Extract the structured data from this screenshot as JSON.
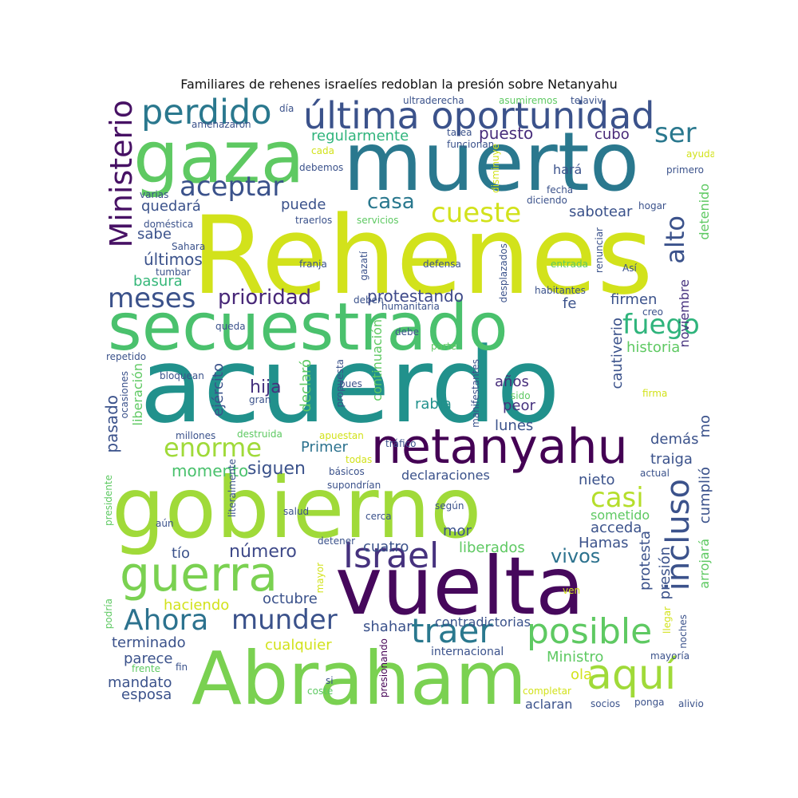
{
  "title": "Familiares de rehenes israelíes redoblan la presión sobre Netanyahu",
  "words": [
    {
      "text": "Rehenes",
      "color": "#d2e21b"
    },
    {
      "text": "acuerdo",
      "color": "#21918c"
    },
    {
      "text": "gobierno",
      "color": "#a0da39"
    },
    {
      "text": "muerto",
      "color": "#2a788e"
    },
    {
      "text": "secuestrado",
      "color": "#4ac16d"
    },
    {
      "text": "vuelta",
      "color": "#46085c"
    },
    {
      "text": "Abraham",
      "color": "#7ad151"
    },
    {
      "text": "gaza",
      "color": "#5ec962"
    },
    {
      "text": "netanyahu",
      "color": "#440154"
    },
    {
      "text": "última oportunidad",
      "color": "#3b528b"
    },
    {
      "text": "guerra",
      "color": "#7ad151"
    },
    {
      "text": "perdido",
      "color": "#2a788e"
    },
    {
      "text": "Ministerio",
      "color": "#471164"
    },
    {
      "text": "aquí",
      "color": "#a0da39"
    },
    {
      "text": "posible",
      "color": "#5ec962"
    },
    {
      "text": "Israel",
      "color": "#46327e"
    },
    {
      "text": "incluso",
      "color": "#3b528b"
    },
    {
      "text": "traer",
      "color": "#2a788e"
    },
    {
      "text": "Ahora",
      "color": "#2c728e"
    },
    {
      "text": "munder",
      "color": "#3b528b"
    },
    {
      "text": "aceptar",
      "color": "#3b528b"
    },
    {
      "text": "meses",
      "color": "#3b528b"
    },
    {
      "text": "cueste",
      "color": "#d2e21b"
    },
    {
      "text": "enorme",
      "color": "#a0da39"
    },
    {
      "text": "fuego",
      "color": "#2fb47c"
    },
    {
      "text": "alto",
      "color": "#3b528b"
    },
    {
      "text": "ser",
      "color": "#2a788e"
    },
    {
      "text": "casi",
      "color": "#b5de2b"
    },
    {
      "text": "prioridad",
      "color": "#482878"
    },
    {
      "text": "casa",
      "color": "#2a788e"
    },
    {
      "text": "número",
      "color": "#3e4989"
    },
    {
      "text": "vivos",
      "color": "#2c728e"
    },
    {
      "text": "regularmente",
      "color": "#2fb47c"
    },
    {
      "text": "puesto",
      "color": "#472d7b"
    },
    {
      "text": "cubo",
      "color": "#482878"
    },
    {
      "text": "protestando",
      "color": "#3e4989"
    },
    {
      "text": "sabotear",
      "color": "#3b528b"
    },
    {
      "text": "Primer",
      "color": "#2c728e"
    },
    {
      "text": "siguen",
      "color": "#3b528b"
    },
    {
      "text": "momento",
      "color": "#4ac16d"
    },
    {
      "text": "pasado",
      "color": "#3b528b"
    },
    {
      "text": "basura",
      "color": "#35b779"
    },
    {
      "text": "últimos",
      "color": "#3b528b"
    },
    {
      "text": "quedará",
      "color": "#3b528b"
    },
    {
      "text": "puede",
      "color": "#3b528b"
    },
    {
      "text": "sabe",
      "color": "#3b528b"
    },
    {
      "text": "hará",
      "color": "#3b528b"
    },
    {
      "text": "historia",
      "color": "#5ec962"
    },
    {
      "text": "cautiverio",
      "color": "#3b528b"
    },
    {
      "text": "fe",
      "color": "#3b528b"
    },
    {
      "text": "firmen",
      "color": "#3b528b"
    },
    {
      "text": "noviembre",
      "color": "#46327e"
    },
    {
      "text": "detenido",
      "color": "#5ec962"
    },
    {
      "text": "hija",
      "color": "#46327e"
    },
    {
      "text": "declaró",
      "color": "#5ec962"
    },
    {
      "text": "rabia",
      "color": "#21918c"
    },
    {
      "text": "años",
      "color": "#472d7b"
    },
    {
      "text": "peor",
      "color": "#46327e"
    },
    {
      "text": "lunes",
      "color": "#3b528b"
    },
    {
      "text": "demás",
      "color": "#3b528b"
    },
    {
      "text": "traiga",
      "color": "#3b528b"
    },
    {
      "text": "nieto",
      "color": "#3b528b"
    },
    {
      "text": "mo",
      "color": "#3b528b"
    },
    {
      "text": "ejército",
      "color": "#3b528b"
    },
    {
      "text": "liberación",
      "color": "#5ec962"
    },
    {
      "text": "continuación",
      "color": "#5ec962"
    },
    {
      "text": "cumplió",
      "color": "#3b528b"
    },
    {
      "text": "sometido",
      "color": "#5ec962"
    },
    {
      "text": "acceda",
      "color": "#3b528b"
    },
    {
      "text": "mor",
      "color": "#3b528b"
    },
    {
      "text": "declaraciones",
      "color": "#3b528b"
    },
    {
      "text": "liberados",
      "color": "#5ec962"
    },
    {
      "text": "cuatro",
      "color": "#3b528b"
    },
    {
      "text": "Hamas",
      "color": "#3b528b"
    },
    {
      "text": "tío",
      "color": "#3b528b"
    },
    {
      "text": "octubre",
      "color": "#3b528b"
    },
    {
      "text": "haciendo",
      "color": "#d2e21b"
    },
    {
      "text": "protesta",
      "color": "#3b528b"
    },
    {
      "text": "presión",
      "color": "#3b528b"
    },
    {
      "text": "arrojará",
      "color": "#5ec962"
    },
    {
      "text": "shahar",
      "color": "#3b528b"
    },
    {
      "text": "contradictorias",
      "color": "#3b528b"
    },
    {
      "text": "cualquier",
      "color": "#d2e21b"
    },
    {
      "text": "terminado",
      "color": "#3b528b"
    },
    {
      "text": "parece",
      "color": "#3b528b"
    },
    {
      "text": "mandato",
      "color": "#3b528b"
    },
    {
      "text": "esposa",
      "color": "#3b528b"
    },
    {
      "text": "Ministro",
      "color": "#5ec962"
    },
    {
      "text": "ola",
      "color": "#d2e21b"
    },
    {
      "text": "aclaran",
      "color": "#3b528b"
    },
    {
      "text": "internacional",
      "color": "#3b528b"
    },
    {
      "text": "ultraderecha",
      "color": "#3b528b"
    },
    {
      "text": "asumiremos",
      "color": "#5ec962"
    },
    {
      "text": "telaviv",
      "color": "#3b528b"
    },
    {
      "text": "día",
      "color": "#3b528b"
    },
    {
      "text": "amenazaron",
      "color": "#3b528b"
    },
    {
      "text": "tarea",
      "color": "#3b528b"
    },
    {
      "text": "funcionan",
      "color": "#3b528b"
    },
    {
      "text": "cada",
      "color": "#d2e21b"
    },
    {
      "text": "debemos",
      "color": "#3b528b"
    },
    {
      "text": "ayuda",
      "color": "#d2e21b"
    },
    {
      "text": "primero",
      "color": "#3b528b"
    },
    {
      "text": "disminuye",
      "color": "#d2e21b"
    },
    {
      "text": "varias",
      "color": "#3b528b"
    },
    {
      "text": "fecha",
      "color": "#3b528b"
    },
    {
      "text": "diciendo",
      "color": "#3b528b"
    },
    {
      "text": "doméstica",
      "color": "#3b528b"
    },
    {
      "text": "traerlos",
      "color": "#3b528b"
    },
    {
      "text": "servicios",
      "color": "#5ec962"
    },
    {
      "text": "hogar",
      "color": "#3b528b"
    },
    {
      "text": "Sahara",
      "color": "#3b528b"
    },
    {
      "text": "tumbar",
      "color": "#3b528b"
    },
    {
      "text": "franja",
      "color": "#3b528b"
    },
    {
      "text": "gazatí",
      "color": "#3b528b"
    },
    {
      "text": "defensa",
      "color": "#3b528b"
    },
    {
      "text": "desplazados",
      "color": "#3b528b"
    },
    {
      "text": "entrada",
      "color": "#5ec962"
    },
    {
      "text": "renunciar",
      "color": "#3b528b"
    },
    {
      "text": "Así",
      "color": "#3b528b"
    },
    {
      "text": "habitantes",
      "color": "#3b528b"
    },
    {
      "text": "deben",
      "color": "#3b528b"
    },
    {
      "text": "humanitaria",
      "color": "#3b528b"
    },
    {
      "text": "creo",
      "color": "#3b528b"
    },
    {
      "text": "queda",
      "color": "#3b528b"
    },
    {
      "text": "debe",
      "color": "#3b528b"
    },
    {
      "text": "parte",
      "color": "#5ec962"
    },
    {
      "text": "repetido",
      "color": "#3b528b"
    },
    {
      "text": "bloquean",
      "color": "#3b528b"
    },
    {
      "text": "ocasiones",
      "color": "#3b528b"
    },
    {
      "text": "gran",
      "color": "#3b528b"
    },
    {
      "text": "propuesta",
      "color": "#3b528b"
    },
    {
      "text": "pues",
      "color": "#3b528b"
    },
    {
      "text": "manifestantes",
      "color": "#3b528b"
    },
    {
      "text": "sido",
      "color": "#5ec962"
    },
    {
      "text": "firma",
      "color": "#d2e21b"
    },
    {
      "text": "millones",
      "color": "#3b528b"
    },
    {
      "text": "destruida",
      "color": "#5ec962"
    },
    {
      "text": "apuestan",
      "color": "#d2e21b"
    },
    {
      "text": "tráfico",
      "color": "#3b528b"
    },
    {
      "text": "todas",
      "color": "#d2e21b"
    },
    {
      "text": "básicos",
      "color": "#3b528b"
    },
    {
      "text": "literalmente",
      "color": "#3b528b"
    },
    {
      "text": "supondrían",
      "color": "#3b528b"
    },
    {
      "text": "actual",
      "color": "#3b528b"
    },
    {
      "text": "presidente",
      "color": "#5ec962"
    },
    {
      "text": "salud",
      "color": "#3b528b"
    },
    {
      "text": "según",
      "color": "#3b528b"
    },
    {
      "text": "cerca",
      "color": "#3b528b"
    },
    {
      "text": "aún",
      "color": "#3b528b"
    },
    {
      "text": "detener",
      "color": "#3b528b"
    },
    {
      "text": "mayor",
      "color": "#d2e21b"
    },
    {
      "text": "ven",
      "color": "#d2e21b"
    },
    {
      "text": "podría",
      "color": "#5ec962"
    },
    {
      "text": "llegar",
      "color": "#d2e21b"
    },
    {
      "text": "noches",
      "color": "#3b528b"
    },
    {
      "text": "presionando",
      "color": "#440154"
    },
    {
      "text": "frente",
      "color": "#5ec962"
    },
    {
      "text": "fin",
      "color": "#3b528b"
    },
    {
      "text": "mayoría",
      "color": "#3b528b"
    },
    {
      "text": "si",
      "color": "#3b528b"
    },
    {
      "text": "coste",
      "color": "#5ec962"
    },
    {
      "text": "completar",
      "color": "#d2e21b"
    },
    {
      "text": "socios",
      "color": "#3b528b"
    },
    {
      "text": "ponga",
      "color": "#3b528b"
    },
    {
      "text": "alivio",
      "color": "#3b528b"
    }
  ]
}
